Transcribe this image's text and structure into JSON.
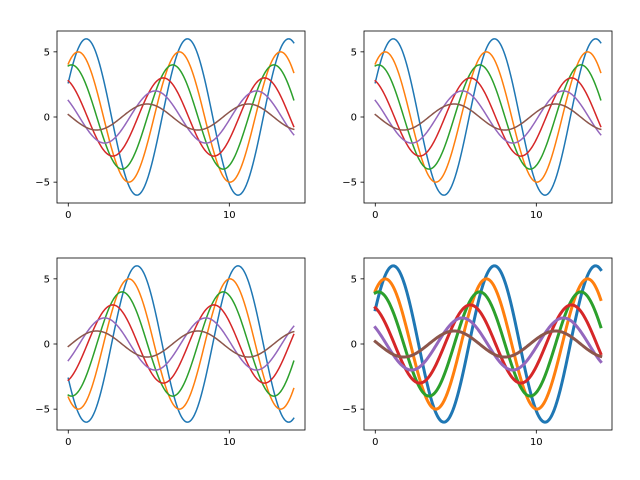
{
  "chart_data": [
    {
      "type": "line",
      "xlim": [
        -0.7,
        14.7
      ],
      "ylim": [
        -6.6,
        6.6
      ],
      "xticks": [
        0,
        10
      ],
      "xtick_labels": [
        "0",
        "10"
      ],
      "yticks": [
        -5,
        0,
        5
      ],
      "ytick_labels": [
        "−5",
        "0",
        "5"
      ],
      "grid": false,
      "line_width": 1.5,
      "series": [
        {
          "color": "#1f77b4",
          "amplitude": 6,
          "x": [
            0,
            14
          ],
          "y_start": 2.6,
          "y_end": 5.8,
          "peaks_x": [
            1.2,
            7.4,
            13.7
          ],
          "troughs_x": [
            4.3,
            10.6
          ]
        },
        {
          "color": "#ff7f0e",
          "amplitude": 5,
          "x": [
            0,
            14
          ],
          "y_start": 4.1,
          "y_end": 3.2,
          "peaks_x": [
            0.7,
            6.9
          ],
          "troughs_x": [
            3.8,
            10.1
          ]
        },
        {
          "color": "#2ca02c",
          "amplitude": 4,
          "x": [
            0,
            14
          ],
          "y_start": 3.8,
          "y_end": 0.8,
          "peaks_x": [
            0.2,
            6.4,
            12.7
          ],
          "troughs_x": [
            3.3,
            9.6
          ]
        },
        {
          "color": "#d62728",
          "amplitude": 3,
          "x": [
            0,
            14
          ],
          "y_start": 2.6,
          "y_end": -0.8,
          "peaks_x": [
            5.9,
            12.2
          ],
          "troughs_x": [
            2.8,
            9.1
          ]
        },
        {
          "color": "#9467bd",
          "amplitude": 2,
          "x": [
            0,
            14
          ],
          "y_start": 1.2,
          "y_end": -1.3,
          "peaks_x": [
            5.4,
            11.7
          ],
          "troughs_x": [
            2.3,
            8.6
          ]
        },
        {
          "color": "#8c564b",
          "amplitude": 1,
          "x": [
            0,
            14
          ],
          "y_start": 0.1,
          "y_end": -0.9,
          "peaks_x": [
            4.9,
            11.2
          ],
          "troughs_x": [
            1.8,
            8.1
          ]
        }
      ]
    },
    {
      "type": "line",
      "xlim": [
        -0.7,
        14.7
      ],
      "ylim": [
        -6.6,
        6.6
      ],
      "xticks": [
        0,
        10
      ],
      "xtick_labels": [
        "0",
        "10"
      ],
      "yticks": [
        -5,
        0,
        5
      ],
      "ytick_labels": [
        "−5",
        "0",
        "5"
      ],
      "grid": false,
      "line_width": 1.5,
      "series": [
        {
          "color": "#1f77b4",
          "amplitude": 6,
          "x": [
            0,
            14
          ],
          "y_start": 2.6,
          "y_end": 5.8,
          "peaks_x": [
            1.2,
            7.4,
            13.7
          ],
          "troughs_x": [
            4.3,
            10.6
          ]
        },
        {
          "color": "#ff7f0e",
          "amplitude": 5,
          "x": [
            0,
            14
          ],
          "y_start": 4.1,
          "y_end": 3.2,
          "peaks_x": [
            0.7,
            6.9
          ],
          "troughs_x": [
            3.8,
            10.1
          ]
        },
        {
          "color": "#2ca02c",
          "amplitude": 4,
          "x": [
            0,
            14
          ],
          "y_start": 3.8,
          "y_end": 0.8,
          "peaks_x": [
            0.2,
            6.4,
            12.7
          ],
          "troughs_x": [
            3.3,
            9.6
          ]
        },
        {
          "color": "#d62728",
          "amplitude": 3,
          "x": [
            0,
            14
          ],
          "y_start": 2.6,
          "y_end": -0.8,
          "peaks_x": [
            5.9,
            12.2
          ],
          "troughs_x": [
            2.8,
            9.1
          ]
        },
        {
          "color": "#9467bd",
          "amplitude": 2,
          "x": [
            0,
            14
          ],
          "y_start": 1.2,
          "y_end": -1.3,
          "peaks_x": [
            5.4,
            11.7
          ],
          "troughs_x": [
            2.3,
            8.6
          ]
        },
        {
          "color": "#8c564b",
          "amplitude": 1,
          "x": [
            0,
            14
          ],
          "y_start": 0.1,
          "y_end": -0.9,
          "peaks_x": [
            4.9,
            11.2
          ],
          "troughs_x": [
            1.8,
            8.1
          ]
        }
      ]
    },
    {
      "type": "line",
      "xlim": [
        -0.7,
        14.7
      ],
      "ylim": [
        -6.6,
        6.6
      ],
      "xticks": [
        0,
        10
      ],
      "xtick_labels": [
        "0",
        "10"
      ],
      "yticks": [
        -5,
        0,
        5
      ],
      "ytick_labels": [
        "−5",
        "0",
        "5"
      ],
      "grid": false,
      "line_width": 1.5,
      "series": [
        {
          "color": "#1f77b4",
          "amplitude": 6,
          "x": [
            0,
            14
          ],
          "y_start": -2.6,
          "y_end": -5.8,
          "peaks_x": [
            4.3,
            10.6
          ],
          "troughs_x": [
            1.2,
            7.4,
            13.7
          ]
        },
        {
          "color": "#ff7f0e",
          "amplitude": 5,
          "x": [
            0,
            14
          ],
          "y_start": -4.1,
          "y_end": -3.2,
          "peaks_x": [
            3.8,
            10.1
          ],
          "troughs_x": [
            0.7,
            6.9
          ]
        },
        {
          "color": "#2ca02c",
          "amplitude": 4,
          "x": [
            0,
            14
          ],
          "y_start": -3.8,
          "y_end": -0.8,
          "peaks_x": [
            3.3,
            9.6
          ],
          "troughs_x": [
            0.2,
            6.4,
            12.7
          ]
        },
        {
          "color": "#d62728",
          "amplitude": 3,
          "x": [
            0,
            14
          ],
          "y_start": -2.6,
          "y_end": 0.8,
          "peaks_x": [
            2.8,
            9.1
          ],
          "troughs_x": [
            5.9,
            12.2
          ]
        },
        {
          "color": "#9467bd",
          "amplitude": 2,
          "x": [
            0,
            14
          ],
          "y_start": -1.2,
          "y_end": 1.3,
          "peaks_x": [
            2.3,
            8.6
          ],
          "troughs_x": [
            5.4,
            11.7
          ]
        },
        {
          "color": "#8c564b",
          "amplitude": 1,
          "x": [
            0,
            14
          ],
          "y_start": -0.1,
          "y_end": 0.9,
          "peaks_x": [
            1.8,
            8.1
          ],
          "troughs_x": [
            4.9,
            11.2
          ]
        }
      ]
    },
    {
      "type": "line",
      "xlim": [
        -0.7,
        14.7
      ],
      "ylim": [
        -6.6,
        6.6
      ],
      "xticks": [
        0,
        10
      ],
      "xtick_labels": [
        "0",
        "10"
      ],
      "yticks": [
        -5,
        0,
        5
      ],
      "ytick_labels": [
        "−5",
        "0",
        "5"
      ],
      "grid": false,
      "line_width": 3,
      "series": [
        {
          "color": "#1f77b4",
          "amplitude": 6,
          "x": [
            0,
            14
          ],
          "y_start": 2.6,
          "y_end": 5.8,
          "peaks_x": [
            1.2,
            7.4,
            13.7
          ],
          "troughs_x": [
            4.3,
            10.6
          ]
        },
        {
          "color": "#ff7f0e",
          "amplitude": 5,
          "x": [
            0,
            14
          ],
          "y_start": 4.1,
          "y_end": 3.2,
          "peaks_x": [
            0.7,
            6.9
          ],
          "troughs_x": [
            3.8,
            10.1
          ]
        },
        {
          "color": "#2ca02c",
          "amplitude": 4,
          "x": [
            0,
            14
          ],
          "y_start": 3.8,
          "y_end": 0.8,
          "peaks_x": [
            0.2,
            6.4,
            12.7
          ],
          "troughs_x": [
            3.3,
            9.6
          ]
        },
        {
          "color": "#d62728",
          "amplitude": 3,
          "x": [
            0,
            14
          ],
          "y_start": 2.6,
          "y_end": -0.8,
          "peaks_x": [
            5.9,
            12.2
          ],
          "troughs_x": [
            2.8,
            9.1
          ]
        },
        {
          "color": "#9467bd",
          "amplitude": 2,
          "x": [
            0,
            14
          ],
          "y_start": 1.2,
          "y_end": -1.3,
          "peaks_x": [
            5.4,
            11.7
          ],
          "troughs_x": [
            2.3,
            8.6
          ]
        },
        {
          "color": "#8c564b",
          "amplitude": 1,
          "x": [
            0,
            14
          ],
          "y_start": 0.1,
          "y_end": -0.9,
          "peaks_x": [
            4.9,
            11.2
          ],
          "troughs_x": [
            1.8,
            8.1
          ]
        }
      ]
    }
  ]
}
